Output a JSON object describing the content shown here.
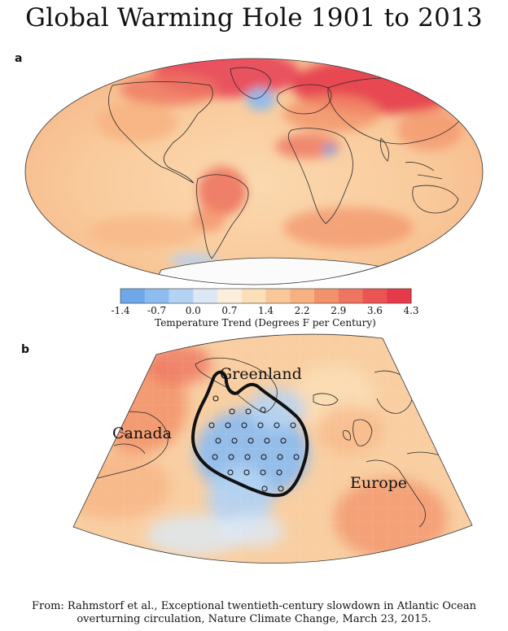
{
  "title": "Global Warming Hole 1901 to 2013",
  "panel_a_label": "a",
  "panel_b_label": "b",
  "colorbar": {
    "ticks": [
      "-1.4",
      "-0.7",
      "0.0",
      "0.7",
      "1.4",
      "2.2",
      "2.9",
      "3.6",
      "4.3"
    ],
    "label": "Temperature Trend (Degrees F per Century)",
    "range": [
      -1.4,
      4.3
    ],
    "colors": [
      "#6fa8e8",
      "#8ebcee",
      "#b4d3f3",
      "#dce8f5",
      "#fbeedd",
      "#fbdfb8",
      "#f9c89a",
      "#f7b080",
      "#f2926a",
      "#ee7560",
      "#ea5553",
      "#e63a4a"
    ]
  },
  "map_b_labels": {
    "greenland": "Greenland",
    "canada": "Canada",
    "europe": "Europe"
  },
  "source_line_1": "From: Rahmstorf et al., Exceptional twentieth-century slowdown in Atlantic Ocean",
  "source_line_2": "overturning circulation, Nature Climate Change, March 23, 2015."
}
